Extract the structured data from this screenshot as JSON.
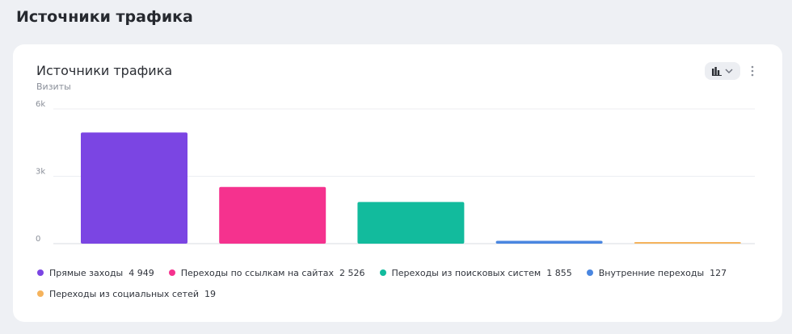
{
  "page": {
    "title": "Источники трафика"
  },
  "card": {
    "title": "Источники трафика",
    "subtitle": "Визиты",
    "chart_type_icon": "bar-chart-icon",
    "more_icon": "more-vertical-icon"
  },
  "chart_data": {
    "type": "bar",
    "title": "Источники трафика",
    "subtitle": "Визиты",
    "ylabel": "",
    "xlabel": "",
    "ylim": [
      0,
      6000
    ],
    "y_ticks": [
      0,
      3000,
      6000
    ],
    "y_tick_labels": [
      "0",
      "3k",
      "6k"
    ],
    "grid": true,
    "legend_position": "bottom",
    "categories": [
      "Прямые заходы",
      "Переходы по ссылкам на сайтах",
      "Переходы из поисковых систем",
      "Внутренние переходы",
      "Переходы из социальных сетей"
    ],
    "values": [
      4949,
      2526,
      1855,
      127,
      19
    ],
    "value_labels": [
      "4 949",
      "2 526",
      "1 855",
      "127",
      "19"
    ],
    "colors": [
      "#7b45e3",
      "#f5328e",
      "#12bb9d",
      "#4a86e0",
      "#f5b35c"
    ]
  }
}
